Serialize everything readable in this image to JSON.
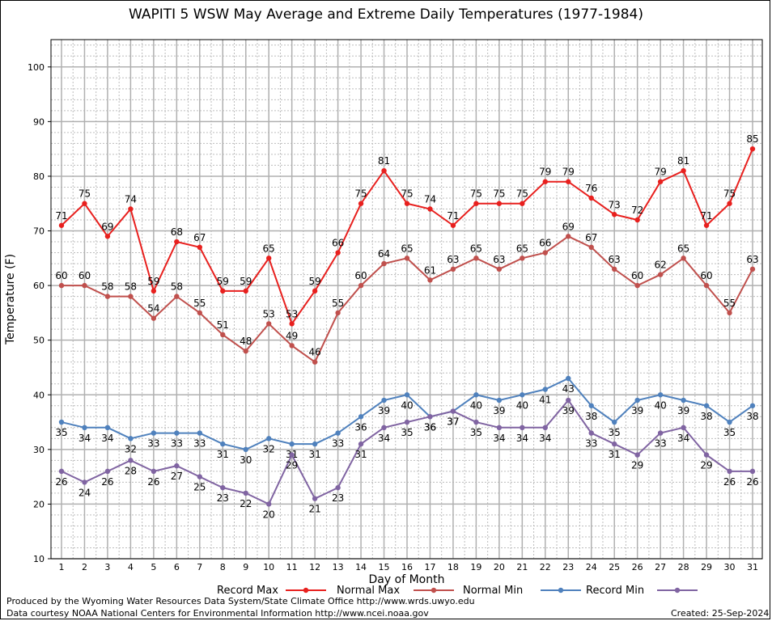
{
  "chart_data": {
    "type": "line",
    "title": "WAPITI 5 WSW May Average and Extreme Daily Temperatures (1977-1984)",
    "xlabel": "Day of Month",
    "ylabel": "Temperature (F)",
    "ylim": [
      10,
      105
    ],
    "yticks": [
      10,
      20,
      30,
      40,
      50,
      60,
      70,
      80,
      90,
      100
    ],
    "categories": [
      "1",
      "2",
      "3",
      "4",
      "5",
      "6",
      "7",
      "8",
      "9",
      "10",
      "11",
      "12",
      "13",
      "14",
      "15",
      "16",
      "17",
      "18",
      "19",
      "20",
      "21",
      "22",
      "23",
      "24",
      "25",
      "26",
      "27",
      "28",
      "29",
      "30",
      "31"
    ],
    "grid": true,
    "legend_position": "bottom",
    "series": [
      {
        "name": "Record Max",
        "color": "#e8201e",
        "values": [
          71,
          75,
          69,
          74,
          59,
          68,
          67,
          59,
          59,
          65,
          53,
          59,
          66,
          75,
          81,
          75,
          74,
          71,
          75,
          75,
          75,
          79,
          79,
          76,
          73,
          72,
          79,
          81,
          71,
          75,
          85
        ]
      },
      {
        "name": "Normal Max",
        "color": "#c0504d",
        "values": [
          60,
          60,
          58,
          58,
          54,
          58,
          55,
          51,
          48,
          53,
          49,
          46,
          55,
          60,
          64,
          65,
          61,
          63,
          65,
          63,
          65,
          66,
          69,
          67,
          63,
          60,
          62,
          65,
          60,
          55,
          63
        ]
      },
      {
        "name": "Normal Min",
        "color": "#4f81bd",
        "values": [
          35,
          34,
          34,
          32,
          33,
          33,
          33,
          31,
          30,
          32,
          31,
          31,
          33,
          36,
          39,
          40,
          36,
          37,
          40,
          39,
          40,
          41,
          43,
          38,
          35,
          39,
          40,
          39,
          38,
          35,
          38
        ]
      },
      {
        "name": "Record Min",
        "color": "#8064a2",
        "values": [
          26,
          24,
          26,
          28,
          26,
          27,
          25,
          23,
          22,
          20,
          29,
          21,
          23,
          31,
          34,
          35,
          36,
          37,
          35,
          34,
          34,
          34,
          39,
          33,
          31,
          29,
          33,
          34,
          29,
          26,
          26
        ]
      }
    ]
  },
  "footer": {
    "produced_by": "Produced by the Wyoming Water Resources Data System/State Climate Office http://www.wrds.uwyo.edu",
    "courtesy": "Data courtesy NOAA National Centers for Environmental Information http://www.ncei.noaa.gov",
    "created": "Created:  25-Sep-2024"
  }
}
